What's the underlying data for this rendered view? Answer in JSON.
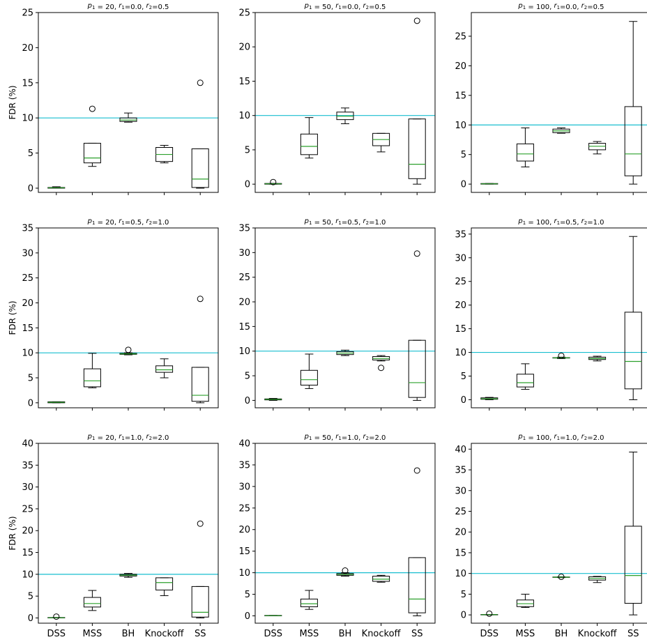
{
  "colors": {
    "box": "#000000",
    "median": "#2ca02c",
    "reference_line": "#17becf"
  },
  "reference_line_value": 10,
  "chart_data": [
    {
      "type": "box",
      "title": "$p_1$ = 20, $r_1$=0.0, $r_2$=0.5",
      "title_parts": [
        "p",
        "1",
        " = 20, ",
        "r",
        "1",
        "=0.0, ",
        "r",
        "2",
        "=0.5"
      ],
      "ylabel": "FDR (%)",
      "ylim": [
        -0.6,
        25
      ],
      "yticks": [
        0,
        5,
        10,
        15,
        20,
        25
      ],
      "categories": [
        "DSS",
        "MSS",
        "BH",
        "Knockoff",
        "SS"
      ],
      "boxes": [
        {
          "whislo": 0,
          "q1": 0,
          "med": 0.05,
          "q3": 0.1,
          "whishi": 0.2,
          "fliers": []
        },
        {
          "whislo": 3.1,
          "q1": 3.6,
          "med": 4.3,
          "q3": 6.4,
          "whishi": 6.4,
          "fliers": [
            11.3
          ]
        },
        {
          "whislo": 9.4,
          "q1": 9.5,
          "med": 9.7,
          "q3": 10.0,
          "whishi": 10.7,
          "fliers": []
        },
        {
          "whislo": 3.6,
          "q1": 3.8,
          "med": 4.8,
          "q3": 5.8,
          "whishi": 6.1,
          "fliers": []
        },
        {
          "whislo": 0,
          "q1": 0.1,
          "med": 1.3,
          "q3": 5.6,
          "whishi": 5.6,
          "fliers": [
            15.0
          ]
        }
      ]
    },
    {
      "type": "box",
      "title": "$p_1$ = 50, $r_1$=0.0, $r_2$=0.5",
      "title_parts": [
        "p",
        "1",
        " = 50, ",
        "r",
        "1",
        "=0.0, ",
        "r",
        "2",
        "=0.5"
      ],
      "ylabel": "",
      "ylim": [
        -1.2,
        25
      ],
      "yticks": [
        0,
        5,
        10,
        15,
        20,
        25
      ],
      "categories": [
        "DSS",
        "MSS",
        "BH",
        "Knockoff",
        "SS"
      ],
      "boxes": [
        {
          "whislo": 0,
          "q1": 0,
          "med": 0.05,
          "q3": 0.1,
          "whishi": 0.1,
          "fliers": [
            0.3
          ]
        },
        {
          "whislo": 3.8,
          "q1": 4.3,
          "med": 5.5,
          "q3": 7.3,
          "whishi": 9.7,
          "fliers": []
        },
        {
          "whislo": 8.8,
          "q1": 9.4,
          "med": 9.9,
          "q3": 10.5,
          "whishi": 11.1,
          "fliers": []
        },
        {
          "whislo": 4.7,
          "q1": 5.6,
          "med": 6.5,
          "q3": 7.4,
          "whishi": 7.4,
          "fliers": []
        },
        {
          "whislo": 0,
          "q1": 0.8,
          "med": 2.9,
          "q3": 9.5,
          "whishi": 9.5,
          "fliers": [
            23.8
          ]
        }
      ]
    },
    {
      "type": "box",
      "title": "$p_1$ = 100, $r_1$=0.0, $r_2$=0.5",
      "title_parts": [
        "p",
        "1",
        " = 100, ",
        "r",
        "1",
        "=0.0, ",
        "r",
        "2",
        "=0.5"
      ],
      "ylabel": "",
      "ylim": [
        -1.4,
        29
      ],
      "yticks": [
        0,
        5,
        10,
        15,
        20,
        25
      ],
      "categories": [
        "DSS",
        "MSS",
        "BH",
        "Knockoff",
        "SS"
      ],
      "boxes": [
        {
          "whislo": 0,
          "q1": 0,
          "med": 0.05,
          "q3": 0.1,
          "whishi": 0.1,
          "fliers": []
        },
        {
          "whislo": 2.9,
          "q1": 3.9,
          "med": 5.1,
          "q3": 6.8,
          "whishi": 9.5,
          "fliers": []
        },
        {
          "whislo": 8.6,
          "q1": 8.7,
          "med": 9.0,
          "q3": 9.3,
          "whishi": 9.5,
          "fliers": []
        },
        {
          "whislo": 5.1,
          "q1": 5.8,
          "med": 6.4,
          "q3": 6.9,
          "whishi": 7.2,
          "fliers": []
        },
        {
          "whislo": 0,
          "q1": 1.4,
          "med": 5.1,
          "q3": 13.1,
          "whishi": 27.5,
          "fliers": []
        }
      ]
    },
    {
      "type": "box",
      "title": "$p_1$ = 20, $r_1$=0.5, $r_2$=1.0",
      "title_parts": [
        "p",
        "1",
        " = 20, ",
        "r",
        "1",
        "=0.5, ",
        "r",
        "2",
        "=1.0"
      ],
      "ylabel": "FDR (%)",
      "ylim": [
        -1,
        35
      ],
      "yticks": [
        0,
        5,
        10,
        15,
        20,
        25,
        30,
        35
      ],
      "categories": [
        "DSS",
        "MSS",
        "BH",
        "Knockoff",
        "SS"
      ],
      "boxes": [
        {
          "whislo": 0,
          "q1": 0,
          "med": 0.1,
          "q3": 0.2,
          "whishi": 0.2,
          "fliers": []
        },
        {
          "whislo": 3.0,
          "q1": 3.2,
          "med": 4.4,
          "q3": 6.8,
          "whishi": 9.9,
          "fliers": []
        },
        {
          "whislo": 9.6,
          "q1": 9.7,
          "med": 9.8,
          "q3": 9.9,
          "whishi": 10.0,
          "fliers": [
            10.6
          ]
        },
        {
          "whislo": 5.0,
          "q1": 6.1,
          "med": 6.6,
          "q3": 7.4,
          "whishi": 8.8,
          "fliers": []
        },
        {
          "whislo": 0,
          "q1": 0.3,
          "med": 1.5,
          "q3": 7.1,
          "whishi": 7.1,
          "fliers": [
            20.8
          ]
        }
      ]
    },
    {
      "type": "box",
      "title": "$p_1$ = 50, $r_1$=0.5, $r_2$=1.0",
      "title_parts": [
        "p",
        "1",
        " = 50, ",
        "r",
        "1",
        "=0.5, ",
        "r",
        "2",
        "=1.0"
      ],
      "ylabel": "",
      "ylim": [
        -1.5,
        35
      ],
      "yticks": [
        0,
        5,
        10,
        15,
        20,
        25,
        30,
        35
      ],
      "categories": [
        "DSS",
        "MSS",
        "BH",
        "Knockoff",
        "SS"
      ],
      "boxes": [
        {
          "whislo": 0,
          "q1": 0.1,
          "med": 0.2,
          "q3": 0.3,
          "whishi": 0.4,
          "fliers": []
        },
        {
          "whislo": 2.4,
          "q1": 3.1,
          "med": 4.2,
          "q3": 6.1,
          "whishi": 9.4,
          "fliers": []
        },
        {
          "whislo": 9.1,
          "q1": 9.3,
          "med": 9.6,
          "q3": 9.9,
          "whishi": 10.2,
          "fliers": []
        },
        {
          "whislo": 8.0,
          "q1": 8.2,
          "med": 8.5,
          "q3": 8.9,
          "whishi": 9.1,
          "fliers": [
            6.6
          ]
        },
        {
          "whislo": 0,
          "q1": 0.6,
          "med": 3.6,
          "q3": 12.2,
          "whishi": 12.2,
          "fliers": [
            29.8
          ]
        }
      ]
    },
    {
      "type": "box",
      "title": "$p_1$ = 100, $r_1$=0.5, $r_2$=1.0",
      "title_parts": [
        "p",
        "1",
        " = 100, ",
        "r",
        "1",
        "=0.5, ",
        "r",
        "2",
        "=1.0"
      ],
      "ylabel": "",
      "ylim": [
        -1.7,
        36.3
      ],
      "yticks": [
        0,
        5,
        10,
        15,
        20,
        25,
        30,
        35
      ],
      "categories": [
        "DSS",
        "MSS",
        "BH",
        "Knockoff",
        "SS"
      ],
      "boxes": [
        {
          "whislo": 0,
          "q1": 0.1,
          "med": 0.2,
          "q3": 0.4,
          "whishi": 0.5,
          "fliers": []
        },
        {
          "whislo": 2.2,
          "q1": 2.7,
          "med": 3.6,
          "q3": 5.4,
          "whishi": 7.6,
          "fliers": []
        },
        {
          "whislo": 8.7,
          "q1": 8.8,
          "med": 8.85,
          "q3": 8.9,
          "whishi": 9.0,
          "fliers": [
            9.3
          ]
        },
        {
          "whislo": 8.2,
          "q1": 8.5,
          "med": 8.7,
          "q3": 9.0,
          "whishi": 9.2,
          "fliers": []
        },
        {
          "whislo": 0,
          "q1": 2.3,
          "med": 8.1,
          "q3": 18.5,
          "whishi": 34.5,
          "fliers": []
        }
      ]
    },
    {
      "type": "box",
      "title": "$p_1$ = 20, $r_1$=1.0, $r_2$=2.0",
      "title_parts": [
        "p",
        "1",
        " = 20, ",
        "r",
        "1",
        "=1.0, ",
        "r",
        "2",
        "=2.0"
      ],
      "ylabel": "FDR (%)",
      "ylim": [
        -1.2,
        40
      ],
      "yticks": [
        0,
        5,
        10,
        15,
        20,
        25,
        30,
        35,
        40
      ],
      "categories": [
        "DSS",
        "MSS",
        "BH",
        "Knockoff",
        "SS"
      ],
      "boxes": [
        {
          "whislo": 0,
          "q1": 0,
          "med": 0.05,
          "q3": 0.1,
          "whishi": 0.1,
          "fliers": [
            0.3
          ]
        },
        {
          "whislo": 1.7,
          "q1": 2.5,
          "med": 3.3,
          "q3": 4.7,
          "whishi": 6.3,
          "fliers": []
        },
        {
          "whislo": 9.3,
          "q1": 9.6,
          "med": 9.8,
          "q3": 10.0,
          "whishi": 10.2,
          "fliers": []
        },
        {
          "whislo": 5.1,
          "q1": 6.4,
          "med": 8.1,
          "q3": 9.2,
          "whishi": 9.2,
          "fliers": []
        },
        {
          "whislo": 0,
          "q1": 0.2,
          "med": 1.3,
          "q3": 7.2,
          "whishi": 7.2,
          "fliers": [
            21.6
          ]
        }
      ]
    },
    {
      "type": "box",
      "title": "$p_1$ = 50, $r_1$=1.0, $r_2$=2.0",
      "title_parts": [
        "p",
        "1",
        " = 50, ",
        "r",
        "1",
        "=1.0, ",
        "r",
        "2",
        "=2.0"
      ],
      "ylabel": "",
      "ylim": [
        -1.7,
        40
      ],
      "yticks": [
        0,
        5,
        10,
        15,
        20,
        25,
        30,
        35,
        40
      ],
      "categories": [
        "DSS",
        "MSS",
        "BH",
        "Knockoff",
        "SS"
      ],
      "boxes": [
        {
          "whislo": 0,
          "q1": 0,
          "med": 0.05,
          "q3": 0.1,
          "whishi": 0.1,
          "fliers": []
        },
        {
          "whislo": 1.5,
          "q1": 2.1,
          "med": 2.8,
          "q3": 3.9,
          "whishi": 5.9,
          "fliers": []
        },
        {
          "whislo": 9.2,
          "q1": 9.4,
          "med": 9.6,
          "q3": 9.8,
          "whishi": 10.0,
          "fliers": [
            10.5
          ]
        },
        {
          "whislo": 7.8,
          "q1": 8.0,
          "med": 8.5,
          "q3": 9.2,
          "whishi": 9.4,
          "fliers": []
        },
        {
          "whislo": 0,
          "q1": 0.7,
          "med": 3.9,
          "q3": 13.5,
          "whishi": 13.5,
          "fliers": [
            33.7
          ]
        }
      ]
    },
    {
      "type": "box",
      "title": "$p_1$ = 100, $r_1$=1.0, $r_2$=2.0",
      "title_parts": [
        "p",
        "1",
        " = 100, ",
        "r",
        "1",
        "=1.0, ",
        "r",
        "2",
        "=2.0"
      ],
      "ylabel": "",
      "ylim": [
        -2.0,
        41.4
      ],
      "yticks": [
        0,
        5,
        10,
        15,
        20,
        25,
        30,
        35,
        40
      ],
      "categories": [
        "DSS",
        "MSS",
        "BH",
        "Knockoff",
        "SS"
      ],
      "boxes": [
        {
          "whislo": 0,
          "q1": 0,
          "med": 0.05,
          "q3": 0.1,
          "whishi": 0.1,
          "fliers": [
            0.3
          ]
        },
        {
          "whislo": 1.8,
          "q1": 2.0,
          "med": 2.7,
          "q3": 3.6,
          "whishi": 5.0,
          "fliers": []
        },
        {
          "whislo": 9.0,
          "q1": 9.05,
          "med": 9.1,
          "q3": 9.15,
          "whishi": 9.2,
          "fliers": [
            9.2
          ]
        },
        {
          "whislo": 7.8,
          "q1": 8.4,
          "med": 8.8,
          "q3": 9.2,
          "whishi": 9.3,
          "fliers": []
        },
        {
          "whislo": 0,
          "q1": 2.8,
          "med": 9.5,
          "q3": 21.4,
          "whishi": 39.3,
          "fliers": []
        }
      ]
    }
  ]
}
